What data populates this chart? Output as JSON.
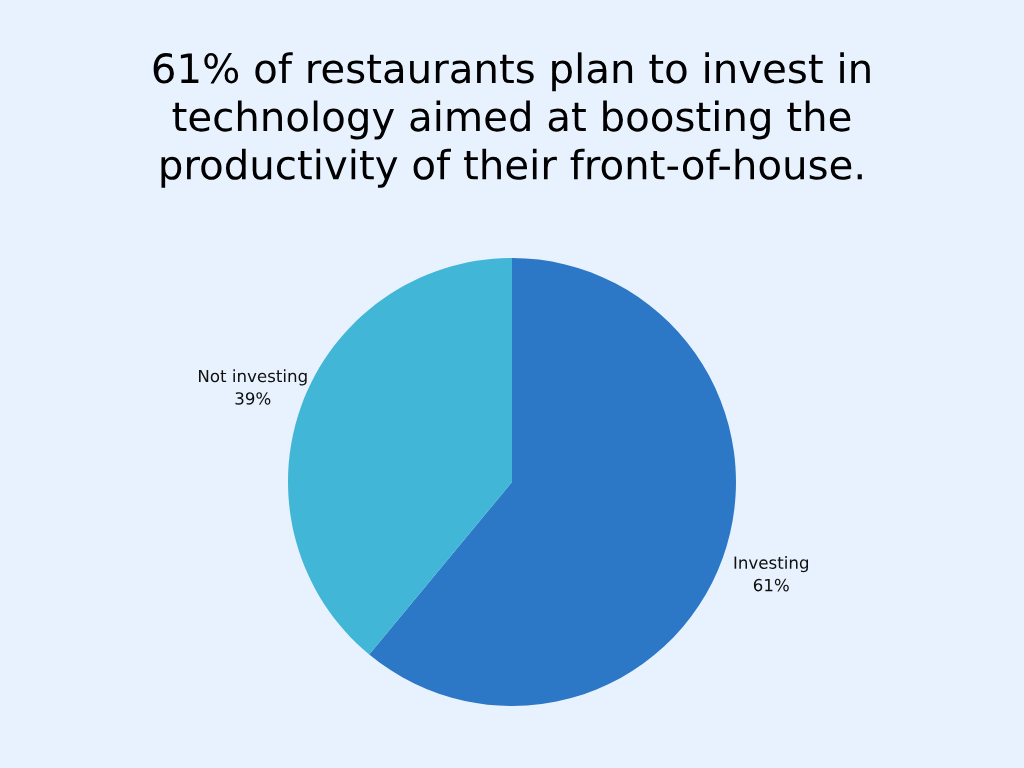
{
  "chart_data": {
    "type": "pie",
    "title": "61% of restaurants plan to invest in technology aimed at boosting the productivity of their front-of-house.",
    "categories": [
      "Investing",
      "Not investing"
    ],
    "values": [
      61,
      39
    ],
    "colors": [
      "#2c78c6",
      "#42b6d6"
    ],
    "value_labels": [
      "61%",
      "39%"
    ],
    "legend": false
  }
}
